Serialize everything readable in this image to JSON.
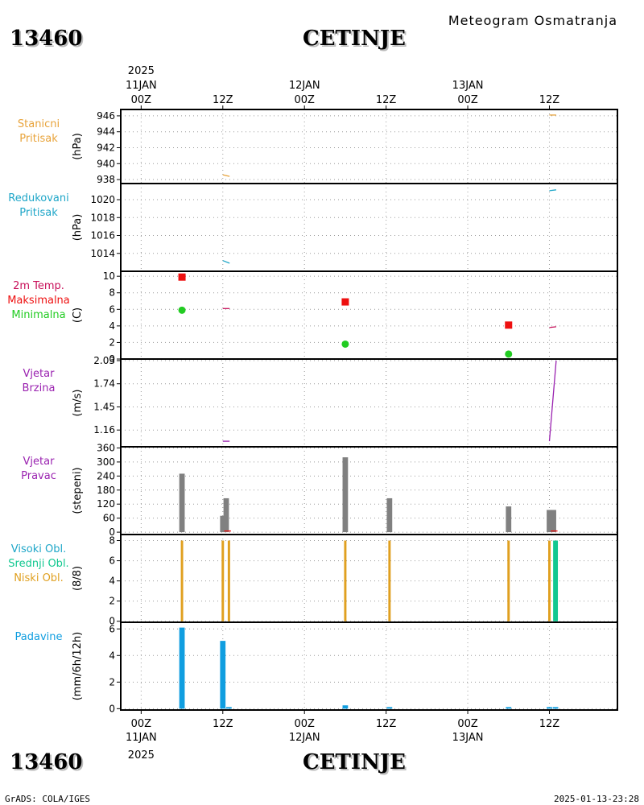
{
  "header": {
    "station_id": "13460",
    "station_name": "CETINJE",
    "product": "Meteogram Osmatranja"
  },
  "footer": {
    "left": "GrADS: COLA/IGES",
    "right": "2025-01-13-23:28"
  },
  "time_axis": {
    "year": "2025",
    "labels": [
      {
        "h": 0,
        "top": "00Z",
        "date": "11JAN"
      },
      {
        "h": 12,
        "top": "12Z",
        "date": ""
      },
      {
        "h": 24,
        "top": "00Z",
        "date": "12JAN"
      },
      {
        "h": 36,
        "top": "12Z",
        "date": ""
      },
      {
        "h": 48,
        "top": "00Z",
        "date": "13JAN"
      },
      {
        "h": 60,
        "top": "12Z",
        "date": ""
      }
    ],
    "range_hours": [
      -3,
      70
    ]
  },
  "colors": {
    "stanicni": "#e8a33a",
    "redukovani": "#1ea6c8",
    "temp": "#c8105a",
    "max": "#ee1010",
    "min": "#22cc22",
    "wind": "#9a22b0",
    "winddir": "#808080",
    "visoki": "#1ea6c8",
    "srednji": "#12c890",
    "niski": "#e0a020",
    "padavine": "#109ee0"
  },
  "chart_data": [
    {
      "id": "stanicni",
      "type": "line",
      "labels": [
        {
          "text": "Stanicni",
          "color": "#e8a33a"
        },
        {
          "text": "Pritisak",
          "color": "#e8a33a"
        }
      ],
      "ylabel": "(hPa)",
      "ylim": [
        937.5,
        946.8
      ],
      "yticks": [
        938,
        940,
        942,
        944,
        946
      ],
      "series": [
        {
          "color": "#e8a33a",
          "points": [
            [
              12,
              938.6
            ],
            [
              13,
              938.4
            ]
          ]
        },
        {
          "color": "#e8a33a",
          "points": [
            [
              60,
              946.1
            ],
            [
              61,
              946.1
            ]
          ]
        }
      ]
    },
    {
      "id": "redukovani",
      "type": "line",
      "labels": [
        {
          "text": "Redukovani",
          "color": "#1ea6c8"
        },
        {
          "text": "Pritisak",
          "color": "#1ea6c8"
        }
      ],
      "ylabel": "(hPa)",
      "ylim": [
        1012.0,
        1021.8
      ],
      "yticks": [
        1014,
        1016,
        1018,
        1020
      ],
      "series": [
        {
          "color": "#1ea6c8",
          "points": [
            [
              12,
              1013.2
            ],
            [
              13,
              1012.9
            ]
          ]
        },
        {
          "color": "#1ea6c8",
          "points": [
            [
              60,
              1021.0
            ],
            [
              61,
              1021.1
            ]
          ]
        }
      ]
    },
    {
      "id": "temperatura",
      "type": "scatter",
      "labels": [
        {
          "text": "2m Temp.",
          "color": "#c8105a"
        },
        {
          "text": "Maksimalna",
          "color": "#ee1010"
        },
        {
          "text": "Minimalna",
          "color": "#22cc22"
        }
      ],
      "ylabel": "(C)",
      "ylim": [
        0,
        10.6
      ],
      "yticks": [
        0,
        2,
        4,
        6,
        8,
        10
      ],
      "series": [
        {
          "name": "",
          "type": "line",
          "color": "#c8105a",
          "points": [
            [
              12,
              6.1
            ],
            [
              13,
              6.1
            ]
          ]
        },
        {
          "name": "",
          "type": "line",
          "color": "#c8105a",
          "points": [
            [
              60,
              3.8
            ],
            [
              61,
              3.9
            ]
          ]
        },
        {
          "type": "square",
          "color": "#ee1010",
          "points": [
            [
              6,
              9.9
            ],
            [
              30,
              6.9
            ],
            [
              54,
              4.1
            ]
          ]
        },
        {
          "type": "circle",
          "color": "#22cc22",
          "points": [
            [
              6,
              5.9
            ],
            [
              30,
              1.8
            ],
            [
              54,
              0.6
            ]
          ]
        }
      ]
    },
    {
      "id": "brzina",
      "type": "line",
      "labels": [
        {
          "text": "Vjetar",
          "color": "#9a22b0"
        },
        {
          "text": "Brzina",
          "color": "#9a22b0"
        }
      ],
      "ylabel": "(m/s)",
      "ylim": [
        0.95,
        2.05
      ],
      "yticks": [
        1.16,
        1.45,
        1.74,
        2.03
      ],
      "yticklabels": [
        "1.16",
        "1.45",
        "1.74",
        "2.03"
      ],
      "series": [
        {
          "color": "#9a22b0",
          "points": [
            [
              12,
              1.02
            ],
            [
              13,
              1.02
            ]
          ]
        },
        {
          "color": "#9a22b0",
          "points": [
            [
              60,
              1.02
            ],
            [
              61,
              2.03
            ]
          ]
        }
      ]
    },
    {
      "id": "pravac",
      "type": "bar",
      "labels": [
        {
          "text": "Vjetar",
          "color": "#9a22b0"
        },
        {
          "text": "Pravac",
          "color": "#9a22b0"
        }
      ],
      "ylabel": "(stepeni)",
      "ylim": [
        -10,
        365
      ],
      "yticks": [
        0,
        60,
        120,
        180,
        240,
        300,
        360
      ],
      "bar_width_h": 0.8,
      "bars": [
        {
          "h": 6,
          "v": 250,
          "color": "#808080"
        },
        {
          "h": 12,
          "v": 70,
          "color": "#808080"
        },
        {
          "h": 12.5,
          "v": 145,
          "color": "#808080"
        },
        {
          "h": 30,
          "v": 320,
          "color": "#808080"
        },
        {
          "h": 36.5,
          "v": 145,
          "color": "#808080"
        },
        {
          "h": 54,
          "v": 110,
          "color": "#808080"
        },
        {
          "h": 60,
          "v": 95,
          "color": "#808080"
        },
        {
          "h": 60.6,
          "v": 95,
          "color": "#808080"
        }
      ],
      "series": [
        {
          "color": "#ee1010",
          "points": [
            [
              12.2,
              5
            ],
            [
              13.2,
              5
            ]
          ]
        },
        {
          "color": "#ee1010",
          "points": [
            [
              60.2,
              5
            ],
            [
              61.2,
              5
            ]
          ]
        }
      ]
    },
    {
      "id": "oblaci",
      "type": "bar",
      "labels": [
        {
          "text": "Visoki Obl.",
          "color": "#1ea6c8"
        },
        {
          "text": "Srednji Obl.",
          "color": "#12c890"
        },
        {
          "text": "Niski Obl.",
          "color": "#e0a020"
        }
      ],
      "ylabel": "(8/8)",
      "ylim": [
        -0.1,
        8.6
      ],
      "yticks": [
        0,
        2,
        4,
        6,
        8
      ],
      "bar_width_h": 0.35,
      "bars": [
        {
          "h": 6,
          "v": 8,
          "color": "#e0a020"
        },
        {
          "h": 12,
          "v": 8,
          "color": "#e0a020"
        },
        {
          "h": 12.9,
          "v": 8,
          "color": "#e0a020"
        },
        {
          "h": 30,
          "v": 8,
          "color": "#e0a020"
        },
        {
          "h": 36.5,
          "v": 8,
          "color": "#e0a020"
        },
        {
          "h": 54,
          "v": 8,
          "color": "#e0a020"
        },
        {
          "h": 60,
          "v": 8,
          "color": "#e0a020"
        },
        {
          "h": 60.9,
          "v": 8,
          "color": "#12c890",
          "w": 0.7
        }
      ]
    },
    {
      "id": "padavine",
      "type": "bar",
      "labels": [
        {
          "text": "Padavine",
          "color": "#109ee0"
        }
      ],
      "ylabel": "(mm/6h/12h)",
      "ylim": [
        -0.1,
        6.5
      ],
      "yticks": [
        0,
        2,
        4,
        6
      ],
      "bar_width_h": 0.8,
      "bars": [
        {
          "h": 6,
          "v": 6.1,
          "color": "#109ee0"
        },
        {
          "h": 12,
          "v": 5.1,
          "color": "#109ee0"
        },
        {
          "h": 12.9,
          "v": 0.05,
          "color": "#109ee0"
        },
        {
          "h": 30,
          "v": 0.25,
          "color": "#109ee0"
        },
        {
          "h": 36.5,
          "v": 0.05,
          "color": "#109ee0"
        },
        {
          "h": 54,
          "v": 0.05,
          "color": "#109ee0"
        },
        {
          "h": 60,
          "v": 0.05,
          "color": "#109ee0"
        },
        {
          "h": 60.9,
          "v": 0.05,
          "color": "#109ee0"
        }
      ]
    }
  ]
}
